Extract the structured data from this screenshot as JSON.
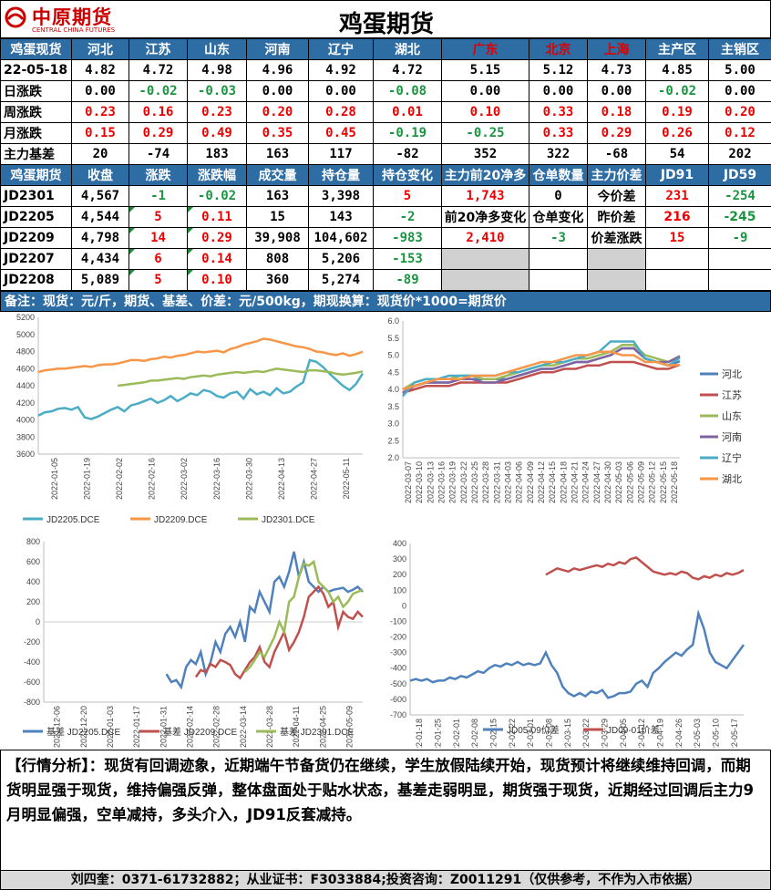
{
  "header": {
    "logo_cn": "中原期货",
    "logo_en": "CENTRAL CHINA FUTURES",
    "title": "鸡蛋期货"
  },
  "spot": {
    "cols": [
      "鸡蛋现货",
      "河北",
      "江苏",
      "山东",
      "河南",
      "辽宁",
      "湖北",
      "广东",
      "北京",
      "上海",
      "主产区",
      "主销区"
    ],
    "rows": [
      {
        "label": "22-05-18",
        "values": [
          "4.82",
          "4.72",
          "4.98",
          "4.96",
          "4.92",
          "4.72",
          "5.15",
          "5.12",
          "4.73",
          "4.85",
          "5.00"
        ]
      },
      {
        "label": "日涨跌",
        "values": [
          "0.00",
          "-0.02",
          "-0.03",
          "0.00",
          "0.00",
          "-0.08",
          "0.00",
          "0.00",
          "0.00",
          "-0.02",
          "0.00"
        ]
      },
      {
        "label": "周涨跌",
        "values": [
          "0.23",
          "0.16",
          "0.23",
          "0.20",
          "0.28",
          "0.01",
          "0.10",
          "0.33",
          "0.18",
          "0.19",
          "0.20"
        ]
      },
      {
        "label": "月涨跌",
        "values": [
          "0.15",
          "0.29",
          "0.49",
          "0.35",
          "0.45",
          "-0.19",
          "-0.25",
          "0.33",
          "0.29",
          "0.26",
          "0.12"
        ]
      },
      {
        "label": "主力基差",
        "values": [
          "20",
          "-74",
          "183",
          "163",
          "117",
          "-82",
          "352",
          "322",
          "-68",
          "54",
          "202"
        ]
      }
    ]
  },
  "fut": {
    "cols": [
      "鸡蛋期货",
      "收盘",
      "涨跌",
      "涨跌幅",
      "成交量",
      "持仓量",
      "持仓变化",
      "主力前20净多",
      "仓单数量",
      "主力价差",
      "JD91",
      "JD59"
    ],
    "rows": [
      {
        "c": [
          "JD2301",
          "4,567",
          "-1",
          "-0.02",
          "163",
          "3,398",
          "5"
        ],
        "e": [
          "1,743",
          "0",
          "今价差",
          "231",
          "-254"
        ]
      },
      {
        "c": [
          "JD2205",
          "4,544",
          "5",
          "0.11",
          "15",
          "143",
          "-2"
        ],
        "e": [
          "前20净多变化",
          "仓单变化",
          "昨价差",
          "216",
          "-245"
        ]
      },
      {
        "c": [
          "JD2209",
          "4,798",
          "14",
          "0.29",
          "39,908",
          "104,602",
          "-983"
        ],
        "e": [
          "2,410",
          "-3",
          "价差涨跌",
          "15",
          "-9"
        ]
      },
      {
        "c": [
          "JD2207",
          "4,434",
          "6",
          "0.14",
          "808",
          "5,206",
          "-153"
        ],
        "e": [
          "",
          "",
          "",
          "",
          ""
        ]
      },
      {
        "c": [
          "JD2208",
          "5,089",
          "5",
          "0.10",
          "360",
          "5,274",
          "-89"
        ],
        "e": [
          "",
          "",
          "",
          "",
          ""
        ]
      }
    ]
  },
  "note": "备注：现货：元/斤，期货、基差、价差：元/500kg，期现换算：现货价*1000=期货价",
  "chart_data": [
    {
      "type": "line",
      "title": "",
      "ylim": [
        3600,
        5200
      ],
      "yticks": [
        3600,
        3800,
        4000,
        4200,
        4400,
        4600,
        4800,
        5000,
        5200
      ],
      "xticks": [
        "2022-01-05",
        "2022-01-19",
        "2022-02-02",
        "2022-02-16",
        "2022-03-02",
        "2022-03-16",
        "2022-03-30",
        "2022-04-13",
        "2022-04-27",
        "2022-05-11"
      ],
      "series": [
        {
          "name": "JD2205.DCE",
          "color": "#4bacc6",
          "values": [
            4050,
            4090,
            4100,
            4130,
            4140,
            4120,
            4150,
            4030,
            4010,
            4040,
            4080,
            4120,
            4150,
            4100,
            4170,
            4190,
            4220,
            4250,
            4200,
            4230,
            4280,
            4220,
            4260,
            4310,
            4290,
            4350,
            4330,
            4280,
            4260,
            4310,
            4330,
            4250,
            4360,
            4300,
            4330,
            4290,
            4370,
            4310,
            4330,
            4390,
            4440,
            4700,
            4680,
            4620,
            4540,
            4470,
            4400,
            4350,
            4420,
            4544
          ]
        },
        {
          "name": "JD2209.DCE",
          "color": "#f79646",
          "values": [
            4560,
            4580,
            4590,
            4600,
            4600,
            4610,
            4620,
            4630,
            4620,
            4640,
            4650,
            4650,
            4660,
            4680,
            4700,
            4700,
            4690,
            4710,
            4720,
            4740,
            4730,
            4750,
            4760,
            4780,
            4800,
            4790,
            4800,
            4810,
            4790,
            4830,
            4850,
            4880,
            4900,
            4920,
            4950,
            4940,
            4920,
            4900,
            4880,
            4860,
            4850,
            4830,
            4800,
            4790,
            4770,
            4760,
            4780,
            4750,
            4770,
            4798
          ]
        },
        {
          "name": "JD2301.DCE",
          "color": "#9bbb59",
          "values": [
            null,
            null,
            null,
            null,
            null,
            null,
            null,
            null,
            null,
            null,
            null,
            null,
            4400,
            4410,
            4420,
            4430,
            4440,
            4460,
            4460,
            4470,
            4480,
            4490,
            4480,
            4500,
            4510,
            4520,
            4510,
            4530,
            4540,
            4550,
            4560,
            4550,
            4560,
            4570,
            4560,
            4580,
            4600,
            4590,
            4580,
            4570,
            4560,
            4580,
            4580,
            4570,
            4560,
            4540,
            4530,
            4540,
            4550,
            4567
          ]
        }
      ]
    },
    {
      "type": "line",
      "title": "",
      "ylim": [
        2.0,
        6.0
      ],
      "yticks": [
        "2.0",
        "2.5",
        "3.0",
        "3.5",
        "4.0",
        "4.5",
        "5.0",
        "5.5",
        "6.0"
      ],
      "xticks": [
        "2022-03-07",
        "2022-03-10",
        "2022-03-13",
        "2022-03-16",
        "2022-03-19",
        "2022-03-22",
        "2022-03-25",
        "2022-03-28",
        "2022-03-31",
        "2022-04-03",
        "2022-04-06",
        "2022-04-09",
        "2022-04-12",
        "2022-04-15",
        "2022-04-18",
        "2022-04-21",
        "2022-04-24",
        "2022-04-27",
        "2022-04-30",
        "2022-05-03",
        "2022-05-06",
        "2022-05-09",
        "2022-05-12",
        "2022-05-15",
        "2022-05-18"
      ],
      "series": [
        {
          "name": "河北",
          "color": "#4f81bd",
          "values": [
            3.9,
            4.1,
            4.2,
            4.2,
            4.2,
            4.3,
            4.3,
            4.3,
            4.3,
            4.3,
            4.4,
            4.5,
            4.6,
            4.6,
            4.7,
            4.8,
            4.8,
            4.9,
            5.0,
            5.2,
            5.2,
            4.9,
            4.8,
            4.7,
            4.82
          ]
        },
        {
          "name": "江苏",
          "color": "#c0504d",
          "values": [
            3.9,
            4.0,
            4.1,
            4.1,
            4.1,
            4.2,
            4.2,
            4.2,
            4.2,
            4.2,
            4.3,
            4.4,
            4.5,
            4.5,
            4.6,
            4.6,
            4.7,
            4.7,
            4.8,
            4.8,
            4.8,
            4.7,
            4.6,
            4.6,
            4.72
          ]
        },
        {
          "name": "山东",
          "color": "#9bbb59",
          "values": [
            4.0,
            4.2,
            4.3,
            4.3,
            4.3,
            4.4,
            4.4,
            4.3,
            4.3,
            4.4,
            4.5,
            4.6,
            4.7,
            4.7,
            4.8,
            4.9,
            4.9,
            5.0,
            5.1,
            5.3,
            5.3,
            5.0,
            4.9,
            4.8,
            4.98
          ]
        },
        {
          "name": "河南",
          "color": "#8064a2",
          "values": [
            3.9,
            4.1,
            4.2,
            4.2,
            4.2,
            4.3,
            4.3,
            4.2,
            4.2,
            4.3,
            4.4,
            4.5,
            4.6,
            4.6,
            4.7,
            4.8,
            4.8,
            4.9,
            5.0,
            5.2,
            5.2,
            4.9,
            4.8,
            4.8,
            4.96
          ]
        },
        {
          "name": "辽宁",
          "color": "#4bacc6",
          "values": [
            3.8,
            4.2,
            4.3,
            4.3,
            4.4,
            4.4,
            4.4,
            4.4,
            4.4,
            4.5,
            4.5,
            4.6,
            4.7,
            4.8,
            4.8,
            4.9,
            5.0,
            5.1,
            5.4,
            5.4,
            5.4,
            4.9,
            4.8,
            4.7,
            4.92
          ]
        },
        {
          "name": "湖北",
          "color": "#f79646",
          "values": [
            4.0,
            4.1,
            4.2,
            4.3,
            4.3,
            4.3,
            4.4,
            4.4,
            4.4,
            4.5,
            4.6,
            4.7,
            4.8,
            4.8,
            4.9,
            5.0,
            5.0,
            5.1,
            5.1,
            5.0,
            5.0,
            4.8,
            4.8,
            4.7,
            4.72
          ]
        }
      ]
    },
    {
      "type": "line",
      "title": "",
      "ylim": [
        -800,
        800
      ],
      "yticks": [
        -800,
        -600,
        -400,
        -200,
        0,
        200,
        400,
        600,
        800
      ],
      "xticks": [
        "2021-12-06",
        "2021-12-20",
        "2022-01-03",
        "2022-01-17",
        "2022-01-31",
        "2022-02-14",
        "2022-02-28",
        "2022-03-14",
        "2022-03-28",
        "2022-04-11",
        "2022-04-25",
        "2022-05-09"
      ],
      "series": [
        {
          "name": "基差 JD2205.DCE",
          "color": "#4f81bd",
          "values": [
            null,
            null,
            null,
            null,
            null,
            null,
            null,
            null,
            null,
            null,
            null,
            null,
            null,
            null,
            null,
            null,
            null,
            null,
            null,
            null,
            null,
            null,
            null,
            null,
            null,
            -520,
            -600,
            -580,
            -650,
            -450,
            -380,
            -420,
            -300,
            -520,
            -400,
            -200,
            -300,
            -120,
            -50,
            -150,
            0,
            -200,
            150,
            100,
            300,
            200,
            100,
            400,
            450,
            350,
            500,
            700,
            450,
            600,
            400,
            350,
            300,
            350,
            300,
            320,
            330,
            340,
            300,
            320,
            350,
            300
          ]
        },
        {
          "name": "基差 JD2209.DCE",
          "color": "#c0504d",
          "values": [
            null,
            null,
            null,
            null,
            null,
            null,
            null,
            null,
            null,
            null,
            null,
            null,
            null,
            null,
            null,
            null,
            null,
            null,
            null,
            null,
            null,
            null,
            null,
            null,
            null,
            null,
            null,
            null,
            null,
            null,
            null,
            -550,
            -480,
            -500,
            -420,
            -450,
            -380,
            -400,
            -430,
            -520,
            -560,
            -480,
            -400,
            -350,
            -250,
            -400,
            -450,
            -300,
            -200,
            -100,
            -280,
            -200,
            -100,
            50,
            250,
            300,
            350,
            280,
            150,
            200,
            -50,
            100,
            50,
            30,
            100,
            50
          ]
        },
        {
          "name": "基差 JD2301.DCE",
          "color": "#9bbb59",
          "values": [
            null,
            null,
            null,
            null,
            null,
            null,
            null,
            null,
            null,
            null,
            null,
            null,
            null,
            null,
            null,
            null,
            null,
            null,
            null,
            null,
            null,
            null,
            null,
            null,
            null,
            null,
            null,
            null,
            null,
            null,
            null,
            null,
            null,
            null,
            null,
            null,
            null,
            null,
            null,
            null,
            null,
            -500,
            -450,
            -380,
            -300,
            -350,
            -250,
            -150,
            0,
            -100,
            200,
            250,
            450,
            580,
            560,
            600,
            400,
            350,
            300,
            200,
            250,
            150,
            200,
            280,
            300,
            320
          ]
        }
      ]
    },
    {
      "type": "line",
      "title": "",
      "ylim": [
        -700,
        400
      ],
      "yticks": [
        400,
        300,
        200,
        100,
        0,
        -100,
        -200,
        -300,
        -400,
        -500,
        -600,
        -700
      ],
      "xticks": [
        "2022-01-18",
        "2022-01-25",
        "2022-02-01",
        "2022-02-08",
        "2022-02-15",
        "2022-02-22",
        "2022-03-01",
        "2022-03-08",
        "2022-03-15",
        "2022-03-22",
        "2022-03-29",
        "2022-04-05",
        "2022-04-12",
        "2022-04-19",
        "2022-04-26",
        "2022-05-03",
        "2022-05-10",
        "2022-05-17"
      ],
      "series": [
        {
          "name": "JD05-09价差",
          "color": "#4f81bd",
          "values": [
            -480,
            -470,
            -480,
            -470,
            -490,
            -480,
            -480,
            -460,
            -470,
            -450,
            -460,
            -440,
            -420,
            -430,
            -400,
            -380,
            -390,
            -370,
            -380,
            -360,
            -380,
            -370,
            -380,
            -370,
            -300,
            -380,
            -430,
            -520,
            -560,
            -580,
            -560,
            -580,
            -550,
            -560,
            -540,
            -590,
            -580,
            -560,
            -560,
            -550,
            -500,
            -480,
            -520,
            -430,
            -400,
            -360,
            -330,
            -300,
            -320,
            -280,
            -250,
            -50,
            -150,
            -300,
            -360,
            -380,
            -400,
            -350,
            -300,
            -250
          ]
        },
        {
          "name": "JD09-01价差",
          "color": "#c0504d",
          "values": [
            null,
            null,
            null,
            null,
            null,
            null,
            null,
            null,
            null,
            null,
            null,
            null,
            null,
            null,
            null,
            null,
            null,
            null,
            null,
            null,
            null,
            null,
            null,
            null,
            200,
            220,
            240,
            230,
            220,
            240,
            230,
            240,
            250,
            260,
            250,
            270,
            260,
            280,
            270,
            300,
            310,
            280,
            250,
            220,
            210,
            200,
            210,
            200,
            220,
            210,
            180,
            170,
            190,
            180,
            200,
            190,
            210,
            200,
            210,
            230
          ]
        }
      ]
    }
  ],
  "analysis": "【行情分析】：现货有回调迹象，近期端午节备货仍在继续，学生放假陆续开始，现货预计将继续维持回调，而期货明显强于现货，维持偏强反弹，整体盘面处于贴水状态，基差走弱明显，期货强于现货，近期经过回调后主力9月明显偏强，空单减持，多头介入，JD91反套减持。",
  "footer": "刘四奎：0371-61732882；从业证书：F3033884;投资咨询：Z0011291（仅供参考，不作为入市依据）"
}
